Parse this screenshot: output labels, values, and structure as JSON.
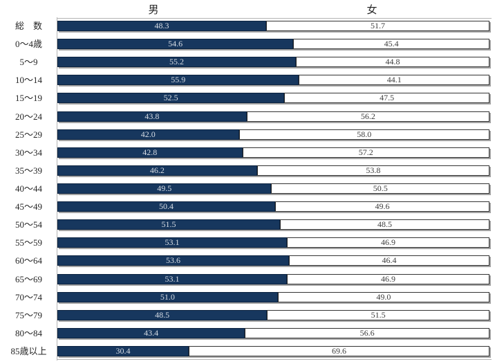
{
  "header": {
    "male_label": "男",
    "female_label": "女"
  },
  "colors": {
    "male_fill": "#17375E",
    "male_border": "#0C2340",
    "female_fill": "#FFFFFF",
    "female_border": "#333333",
    "shadow": "#A3A3A3",
    "axis": "#B3B3B3",
    "male_text": "#D6DCE4",
    "female_text": "#3D3D3D",
    "label_text": "#262626"
  },
  "chart_data": {
    "type": "bar",
    "orientation": "horizontal",
    "stacked": true,
    "title": "",
    "xlabel": "",
    "ylabel": "",
    "xlim": [
      0,
      100
    ],
    "grid": false,
    "legend_position": "top-column-headers",
    "value_labels": "inside-center-one-decimal",
    "categories": [
      "総　数",
      "0〜4歳",
      "5〜9",
      "10〜14",
      "15〜19",
      "20〜24",
      "25〜29",
      "30〜34",
      "35〜39",
      "40〜44",
      "45〜49",
      "50〜54",
      "55〜59",
      "60〜64",
      "65〜69",
      "70〜74",
      "75〜79",
      "80〜84",
      "85歳以上"
    ],
    "series": [
      {
        "name": "男",
        "values": [
          48.3,
          54.6,
          55.2,
          55.9,
          52.5,
          43.8,
          42.0,
          42.8,
          46.2,
          49.5,
          50.4,
          51.5,
          53.1,
          53.6,
          53.1,
          51.0,
          48.5,
          43.4,
          30.4
        ]
      },
      {
        "name": "女",
        "values": [
          51.7,
          45.4,
          44.8,
          44.1,
          47.5,
          56.2,
          58.0,
          57.2,
          53.8,
          50.5,
          49.6,
          48.5,
          46.9,
          46.4,
          46.9,
          49.0,
          51.5,
          56.6,
          69.6
        ]
      }
    ]
  }
}
